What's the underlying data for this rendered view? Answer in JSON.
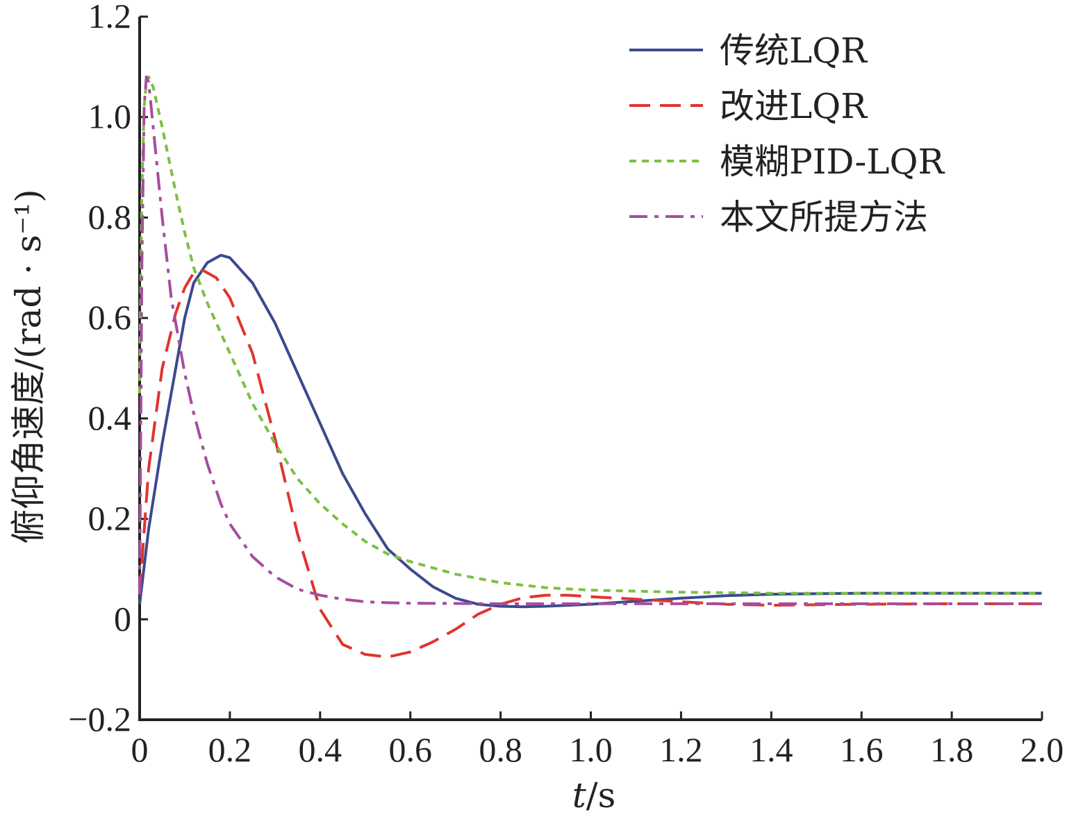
{
  "chart_data": {
    "type": "line",
    "title": "",
    "xlabel": "t/s",
    "xlabel_italic": "t",
    "xlabel_rest": "/s",
    "ylabel": "俯仰角速度/(rad · s⁻¹)",
    "xlim": [
      0,
      2.0
    ],
    "ylim": [
      -0.2,
      1.2
    ],
    "xticks": [
      "0",
      "0.2",
      "0.4",
      "0.6",
      "0.8",
      "1.0",
      "1.2",
      "1.4",
      "1.6",
      "1.8",
      "2.0"
    ],
    "yticks": [
      "−0.2",
      "0",
      "0.2",
      "0.4",
      "0.6",
      "0.8",
      "1.0",
      "1.2"
    ],
    "grid": false,
    "legend_position": "top-right",
    "series": [
      {
        "name": "传统LQR",
        "color": "#3b4a8f",
        "dash": "solid",
        "x": [
          0,
          0.02,
          0.05,
          0.08,
          0.1,
          0.12,
          0.15,
          0.18,
          0.2,
          0.25,
          0.3,
          0.35,
          0.4,
          0.45,
          0.5,
          0.55,
          0.6,
          0.65,
          0.7,
          0.75,
          0.8,
          0.85,
          0.9,
          1.0,
          1.1,
          1.2,
          1.3,
          1.4,
          1.5,
          1.6,
          1.8,
          2.0
        ],
        "y": [
          0.03,
          0.18,
          0.35,
          0.5,
          0.6,
          0.67,
          0.71,
          0.725,
          0.72,
          0.67,
          0.59,
          0.49,
          0.39,
          0.29,
          0.21,
          0.14,
          0.1,
          0.065,
          0.042,
          0.03,
          0.026,
          0.025,
          0.026,
          0.03,
          0.036,
          0.042,
          0.047,
          0.05,
          0.051,
          0.052,
          0.052,
          0.052
        ]
      },
      {
        "name": "改进LQR",
        "color": "#e0342e",
        "dash": "long-dash",
        "x": [
          0,
          0.02,
          0.05,
          0.08,
          0.1,
          0.12,
          0.14,
          0.17,
          0.2,
          0.25,
          0.3,
          0.35,
          0.4,
          0.45,
          0.5,
          0.55,
          0.6,
          0.65,
          0.7,
          0.75,
          0.8,
          0.85,
          0.9,
          0.95,
          1.0,
          1.1,
          1.2,
          1.3,
          1.4,
          1.6,
          1.8,
          2.0
        ],
        "y": [
          0.05,
          0.3,
          0.5,
          0.61,
          0.66,
          0.69,
          0.695,
          0.68,
          0.64,
          0.53,
          0.36,
          0.17,
          0.02,
          -0.05,
          -0.07,
          -0.075,
          -0.065,
          -0.045,
          -0.02,
          0.01,
          0.03,
          0.043,
          0.048,
          0.048,
          0.045,
          0.04,
          0.035,
          0.03,
          0.028,
          0.03,
          0.031,
          0.031
        ]
      },
      {
        "name": "模糊PID-LQR",
        "color": "#7bc043",
        "dash": "dotted",
        "x": [
          0,
          0.005,
          0.01,
          0.015,
          0.02,
          0.03,
          0.05,
          0.08,
          0.1,
          0.12,
          0.15,
          0.2,
          0.25,
          0.3,
          0.35,
          0.4,
          0.45,
          0.5,
          0.55,
          0.6,
          0.7,
          0.8,
          0.9,
          1.0,
          1.2,
          1.4,
          1.6,
          1.8,
          2.0
        ],
        "y": [
          0.45,
          0.85,
          1.02,
          1.07,
          1.08,
          1.06,
          0.98,
          0.85,
          0.77,
          0.7,
          0.63,
          0.53,
          0.43,
          0.35,
          0.28,
          0.23,
          0.19,
          0.155,
          0.13,
          0.115,
          0.09,
          0.073,
          0.063,
          0.058,
          0.054,
          0.052,
          0.052,
          0.052,
          0.052
        ]
      },
      {
        "name": "本文所提方法",
        "color": "#a64d9f",
        "dash": "dash-dot",
        "x": [
          0,
          0.005,
          0.01,
          0.015,
          0.02,
          0.03,
          0.05,
          0.07,
          0.1,
          0.12,
          0.15,
          0.18,
          0.2,
          0.25,
          0.3,
          0.35,
          0.4,
          0.45,
          0.5,
          0.55,
          0.6,
          0.8,
          1.0,
          1.2,
          1.5,
          2.0
        ],
        "y": [
          0.05,
          0.7,
          1.02,
          1.08,
          1.07,
          0.98,
          0.8,
          0.64,
          0.49,
          0.41,
          0.31,
          0.23,
          0.19,
          0.125,
          0.085,
          0.06,
          0.048,
          0.04,
          0.035,
          0.033,
          0.032,
          0.031,
          0.031,
          0.031,
          0.031,
          0.031
        ]
      }
    ]
  }
}
